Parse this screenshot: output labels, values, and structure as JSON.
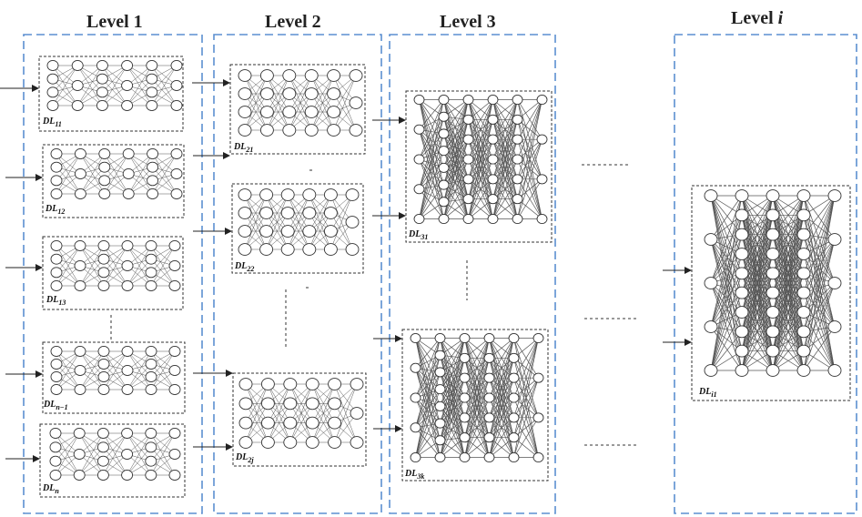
{
  "levels": [
    {
      "id": "1",
      "title": "Level 1",
      "title_italic": ""
    },
    {
      "id": "2",
      "title": "Level 2",
      "title_italic": ""
    },
    {
      "id": "3",
      "title": "Level 3",
      "title_italic": ""
    },
    {
      "id": "i",
      "title": "Level ",
      "title_italic": "i"
    }
  ],
  "networks": [
    {
      "id": "dl11",
      "label_main": "DL",
      "label_sub": "11",
      "level": "1",
      "style": "small"
    },
    {
      "id": "dl12",
      "label_main": "DL",
      "label_sub": "12",
      "level": "1",
      "style": "small"
    },
    {
      "id": "dl13",
      "label_main": "DL",
      "label_sub": "13",
      "level": "1",
      "style": "small"
    },
    {
      "id": "dln1",
      "label_main": "DL",
      "label_sub": "n−1",
      "level": "1",
      "style": "small"
    },
    {
      "id": "dln",
      "label_main": "DL",
      "label_sub": "n",
      "level": "1",
      "style": "small"
    },
    {
      "id": "dl21",
      "label_main": "DL",
      "label_sub": "21",
      "level": "2",
      "style": "medium"
    },
    {
      "id": "dl22",
      "label_main": "DL",
      "label_sub": "22",
      "level": "2",
      "style": "medium"
    },
    {
      "id": "dl2j",
      "label_main": "DL",
      "label_sub": "2j",
      "level": "2",
      "style": "medium"
    },
    {
      "id": "dl31",
      "label_main": "DL",
      "label_sub": "31",
      "level": "3",
      "style": "dense"
    },
    {
      "id": "dl3k",
      "label_main": "DL",
      "label_sub": "3k",
      "level": "3",
      "style": "dense"
    },
    {
      "id": "dli1",
      "label_main": "DL",
      "label_sub": "i1",
      "level": "i",
      "style": "large"
    }
  ],
  "colors": {
    "level_border": "#5b8fd0",
    "network_border": "#333333",
    "node_stroke": "#333333",
    "edge": "#555555",
    "arrow": "#222222"
  }
}
